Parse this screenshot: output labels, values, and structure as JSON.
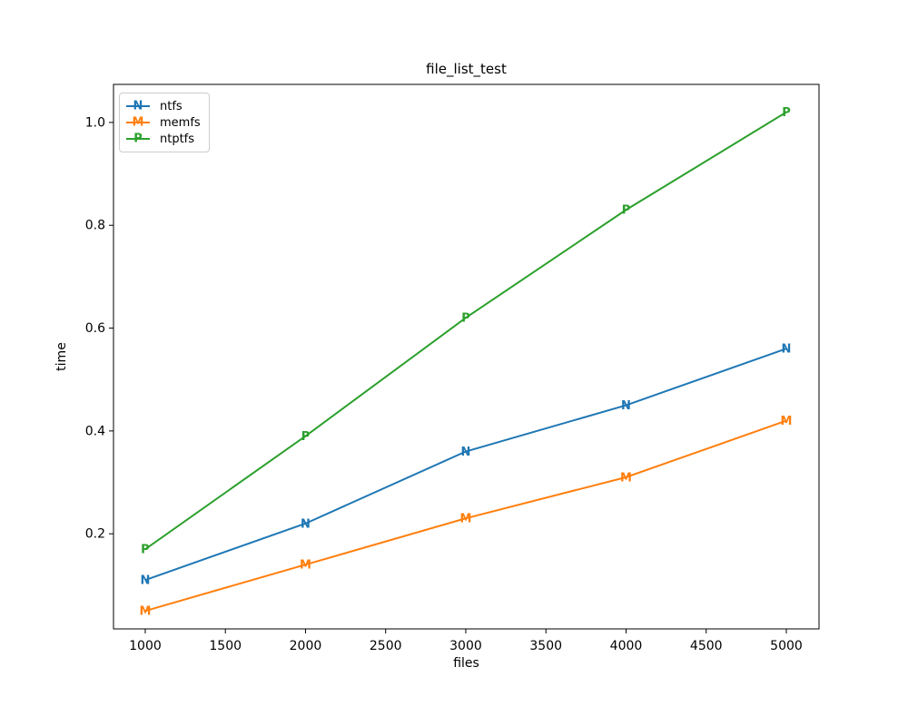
{
  "figure": {
    "background": "#ffffff"
  },
  "chart_data": {
    "type": "line",
    "title": "file_list_test",
    "xlabel": "files",
    "ylabel": "time",
    "x": [
      1000,
      2000,
      3000,
      4000,
      5000
    ],
    "series": [
      {
        "name": "ntfs",
        "marker": "N",
        "color": "#1f77b4",
        "values": [
          0.11,
          0.22,
          0.36,
          0.45,
          0.56
        ]
      },
      {
        "name": "memfs",
        "marker": "M",
        "color": "#ff7f0e",
        "values": [
          0.05,
          0.14,
          0.23,
          0.31,
          0.42
        ]
      },
      {
        "name": "ntptfs",
        "marker": "P",
        "color": "#2ca02c",
        "values": [
          0.17,
          0.39,
          0.62,
          0.83,
          1.02
        ]
      }
    ],
    "xticks": [
      1000,
      1500,
      2000,
      2500,
      3000,
      3500,
      4000,
      4500,
      5000
    ],
    "yticks": [
      0.2,
      0.4,
      0.6,
      0.8,
      1.0
    ],
    "xlim": [
      802,
      5204
    ],
    "ylim": [
      0.015,
      1.074
    ],
    "grid": false,
    "legend_position": "upper left",
    "axis_color": "#000000",
    "text_color": "#000000"
  }
}
